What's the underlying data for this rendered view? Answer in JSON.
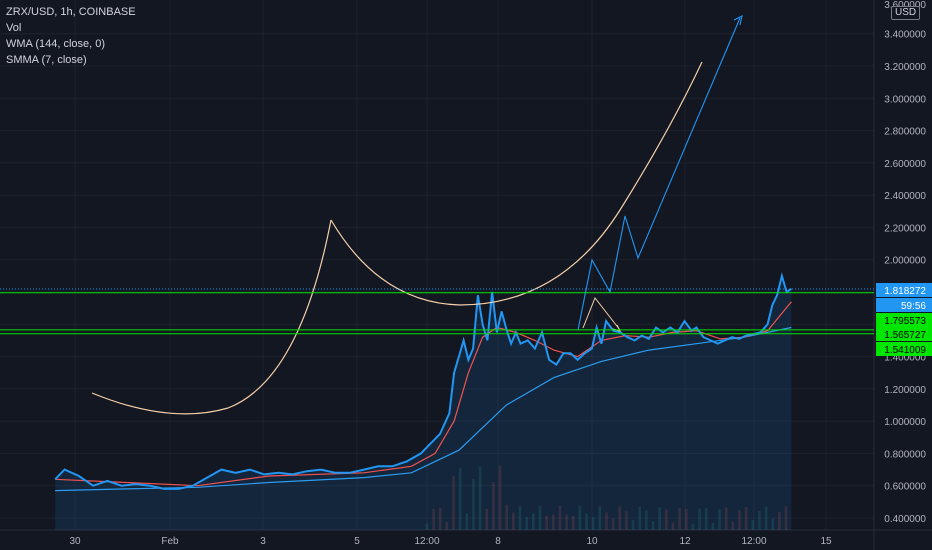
{
  "legend": {
    "symbol": "ZRX/USD, 1h, COINBASE",
    "volume": "Vol",
    "wma": "WMA (144, close, 0)",
    "smma": "SMMA (7, close)"
  },
  "price_axis": {
    "unit": "USD",
    "top_tick": "3.600000"
  },
  "badges": {
    "last_price": "1.818272",
    "countdown": "59:56",
    "level_1": "1.795573",
    "level_2": "1.565727",
    "level_3": "1.541009"
  },
  "colors": {
    "background": "#131722",
    "price_line": "#2196f3",
    "smma_line": "#ef5350",
    "wma_line": "#2b9cf0",
    "cup_curve": "#f5cfa8",
    "support_lines": "#00e600",
    "projection": "#2196f3",
    "volume_up": "#26a69a",
    "volume_down": "#ef5350"
  },
  "chart_data": {
    "type": "line",
    "title": "ZRX/USD, 1h, COINBASE",
    "x_tick_labels": [
      "30",
      "Feb",
      "3",
      "5",
      "12:00",
      "8",
      "10",
      "12",
      "12:00",
      "15"
    ],
    "y_tick_labels": [
      "0.400000",
      "0.600000",
      "0.800000",
      "1.000000",
      "1.200000",
      "1.400000",
      "1.600000",
      "1.800000",
      "2.000000",
      "2.200000",
      "2.400000",
      "2.600000",
      "2.800000",
      "3.000000",
      "3.200000",
      "3.400000"
    ],
    "ylim": [
      0.37,
      3.6
    ],
    "x_domain_days": [
      -3.5,
      15.6
    ],
    "grid": true,
    "series": [
      {
        "name": "ZRX/USD",
        "x_days": [
          -3.5,
          -3.3,
          -3.0,
          -2.7,
          -2.4,
          -2.1,
          -1.8,
          -1.5,
          -1.2,
          -0.9,
          -0.6,
          -0.3,
          0.0,
          0.3,
          0.6,
          0.9,
          1.2,
          1.5,
          1.8,
          2.1,
          2.4,
          2.7,
          3.0,
          3.3,
          3.6,
          3.9,
          4.2,
          4.4,
          4.6,
          4.8,
          4.9,
          5.0,
          5.1,
          5.2,
          5.3,
          5.4,
          5.5,
          5.6,
          5.7,
          5.8,
          5.9,
          6.0,
          6.1,
          6.2,
          6.3,
          6.45,
          6.6,
          6.75,
          6.9,
          7.05,
          7.2,
          7.35,
          7.5,
          7.65,
          7.8,
          7.9,
          8.0,
          8.1,
          8.25,
          8.4,
          8.55,
          8.7,
          8.85,
          9.0,
          9.15,
          9.3,
          9.45,
          9.6,
          9.75,
          9.9,
          10.0,
          10.15,
          10.3,
          10.45,
          10.6,
          10.75,
          10.9,
          11.05,
          11.2,
          11.35,
          11.5,
          11.6,
          11.7,
          11.8,
          11.9,
          12.0
        ],
        "values": [
          0.64,
          0.7,
          0.66,
          0.6,
          0.63,
          0.6,
          0.61,
          0.6,
          0.58,
          0.58,
          0.6,
          0.65,
          0.7,
          0.68,
          0.7,
          0.67,
          0.68,
          0.67,
          0.69,
          0.7,
          0.68,
          0.68,
          0.7,
          0.72,
          0.72,
          0.75,
          0.8,
          0.86,
          0.92,
          1.05,
          1.3,
          1.4,
          1.5,
          1.38,
          1.45,
          1.78,
          1.6,
          1.5,
          1.8,
          1.55,
          1.68,
          1.57,
          1.48,
          1.55,
          1.48,
          1.5,
          1.45,
          1.55,
          1.38,
          1.35,
          1.42,
          1.42,
          1.38,
          1.42,
          1.45,
          1.58,
          1.48,
          1.62,
          1.56,
          1.55,
          1.52,
          1.5,
          1.53,
          1.51,
          1.58,
          1.55,
          1.58,
          1.55,
          1.62,
          1.56,
          1.58,
          1.52,
          1.5,
          1.48,
          1.5,
          1.52,
          1.51,
          1.53,
          1.54,
          1.55,
          1.6,
          1.72,
          1.78,
          1.9,
          1.8,
          1.82
        ]
      },
      {
        "name": "SMMA (7, close)",
        "x_days": [
          -3.5,
          -2.0,
          -0.5,
          1.0,
          3.0,
          4.0,
          4.5,
          4.9,
          5.2,
          5.5,
          5.8,
          6.2,
          6.6,
          7.0,
          7.5,
          8.0,
          8.5,
          9.0,
          9.5,
          10.0,
          10.5,
          11.0,
          11.5,
          12.0
        ],
        "values": [
          0.64,
          0.62,
          0.6,
          0.66,
          0.68,
          0.72,
          0.8,
          1.0,
          1.3,
          1.52,
          1.58,
          1.55,
          1.5,
          1.44,
          1.4,
          1.5,
          1.53,
          1.52,
          1.55,
          1.56,
          1.51,
          1.52,
          1.56,
          1.74
        ]
      },
      {
        "name": "WMA (144, close, 0)",
        "x_days": [
          -3.5,
          -2.0,
          -0.5,
          1.0,
          3.0,
          4.0,
          5.0,
          6.0,
          7.0,
          8.0,
          9.0,
          10.0,
          11.0,
          12.0
        ],
        "values": [
          0.57,
          0.58,
          0.59,
          0.62,
          0.65,
          0.68,
          0.82,
          1.1,
          1.27,
          1.37,
          1.44,
          1.48,
          1.52,
          1.58
        ]
      }
    ],
    "horizontal_levels": [
      1.795573,
      1.565727,
      1.541009
    ],
    "last_price": 1.818272
  }
}
